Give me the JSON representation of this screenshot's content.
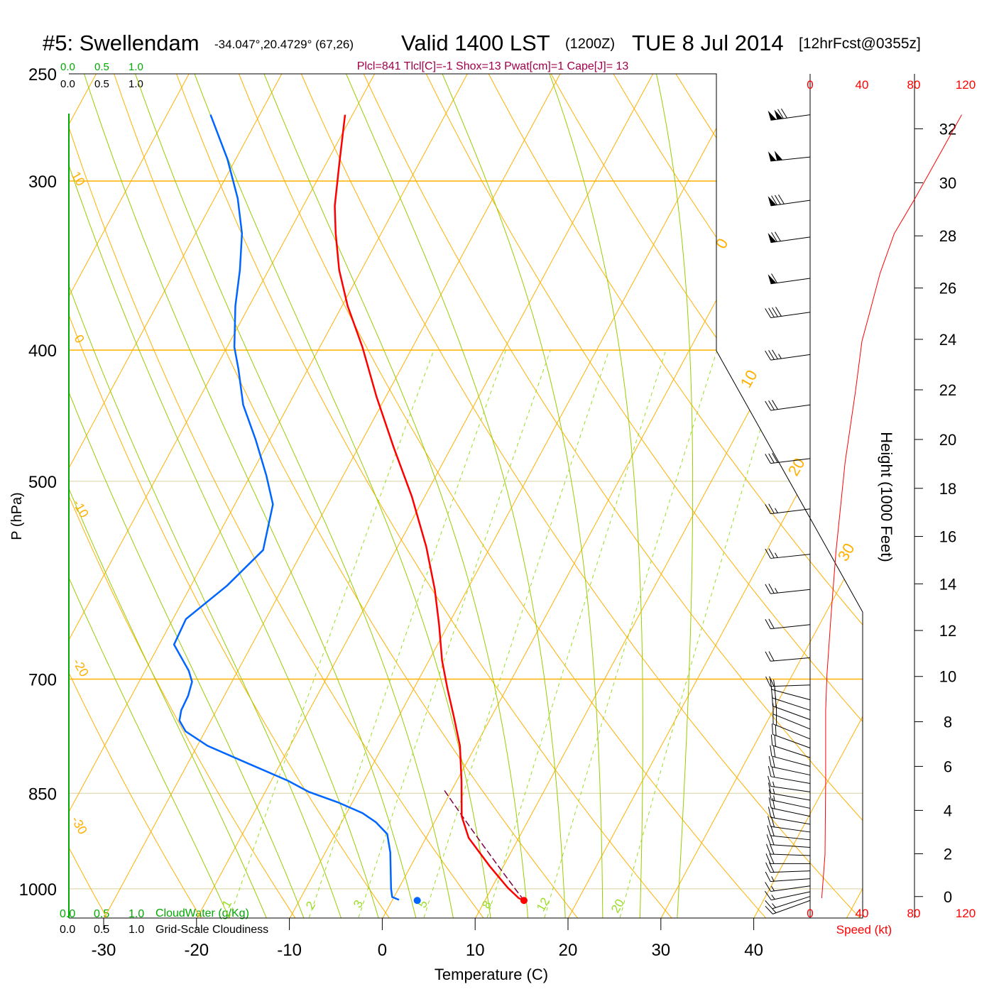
{
  "header": {
    "station": "#5: Swellendam",
    "coords": "-34.047°,20.4729° (67,26)",
    "valid": "Valid 1400 LST",
    "zulu": "(1200Z)",
    "date": "TUE 8 Jul 2014",
    "forecast": "[12hrFcst@0355z]",
    "indices": "Plcl=841 Tlcl[C]=-1 Shox=13 Pwat[cm]=1 Cape[J]= 13"
  },
  "cloud_scales": {
    "ticks": [
      "0.0",
      "0.5",
      "1.0"
    ],
    "cloudwater_label": "CloudWater (g/Kg)",
    "cloudiness_label": "Grid-Scale Cloudiness"
  },
  "colors": {
    "temperature": "#ff0000",
    "dewpoint": "#0066ff",
    "parcel": "#800040",
    "isotherm": "#ffb000",
    "moist_adiabat": "#99cc00",
    "mixing_ratio": "#99dd22",
    "indices": "#a0004a",
    "cloudwater": "#00aa00"
  },
  "chart_data": {
    "type": "line",
    "subtype": "skew-T log-P sounding",
    "xlabel": "Temperature (C)",
    "ylabel": "P (hPa)",
    "x_ticks": [
      "-30",
      "-20",
      "-10",
      "0",
      "10",
      "20",
      "30",
      "40"
    ],
    "y_ticks": [
      "250",
      "300",
      "400",
      "500",
      "700",
      "850",
      "1000"
    ],
    "isotherm_labels_left": [
      "10",
      "0",
      "-10",
      "-20",
      "-30"
    ],
    "isotherm_labels_right": [
      "0",
      "10",
      "20",
      "30"
    ],
    "mixing_ratio_labels": [
      "1",
      "2",
      "3",
      "5",
      "8",
      "12",
      "20"
    ],
    "mixing_ratios_gkg": [
      1,
      2,
      3,
      5,
      8,
      12,
      20
    ],
    "moist_adiabats_c": [
      -16,
      -12,
      -8,
      -4,
      0,
      4,
      8,
      12,
      16,
      20,
      24,
      28,
      32
    ],
    "series": [
      {
        "name": "Temperature",
        "points": [
          [
            268,
            -50.8
          ],
          [
            291,
            -48.6
          ],
          [
            313,
            -46.6
          ],
          [
            328,
            -44.9
          ],
          [
            349,
            -42.4
          ],
          [
            371,
            -39.4
          ],
          [
            398,
            -35.4
          ],
          [
            433,
            -31.0
          ],
          [
            472,
            -26.2
          ],
          [
            513,
            -21.4
          ],
          [
            559,
            -16.9
          ],
          [
            601,
            -13.5
          ],
          [
            638,
            -11.0
          ],
          [
            678,
            -8.6
          ],
          [
            711,
            -6.4
          ],
          [
            747,
            -4.0
          ],
          [
            784,
            -1.7
          ],
          [
            832,
            0.5
          ],
          [
            884,
            2.6
          ],
          [
            917,
            4.6
          ],
          [
            962,
            8.5
          ],
          [
            998,
            11.7
          ],
          [
            1016,
            13.5
          ],
          [
            1020,
            14.2
          ]
        ]
      },
      {
        "name": "Dewpoint",
        "points": [
          [
            268,
            -65.3
          ],
          [
            289,
            -60.9
          ],
          [
            309,
            -57.5
          ],
          [
            328,
            -55.0
          ],
          [
            349,
            -53.1
          ],
          [
            371,
            -51.5
          ],
          [
            398,
            -49.2
          ],
          [
            413,
            -47.5
          ],
          [
            439,
            -44.9
          ],
          [
            466,
            -41.5
          ],
          [
            495,
            -38.3
          ],
          [
            520,
            -35.9
          ],
          [
            562,
            -34.3
          ],
          [
            597,
            -36.1
          ],
          [
            632,
            -38.6
          ],
          [
            660,
            -38.4
          ],
          [
            690,
            -35.3
          ],
          [
            703,
            -34.3
          ],
          [
            720,
            -33.9
          ],
          [
            738,
            -33.8
          ],
          [
            751,
            -33.4
          ],
          [
            765,
            -32.1
          ],
          [
            784,
            -28.9
          ],
          [
            808,
            -23.5
          ],
          [
            832,
            -18.2
          ],
          [
            848,
            -15.3
          ],
          [
            863,
            -11.6
          ],
          [
            879,
            -8.3
          ],
          [
            893,
            -6.3
          ],
          [
            911,
            -4.4
          ],
          [
            940,
            -3.0
          ],
          [
            1000,
            -0.8
          ],
          [
            1014,
            -0.2
          ],
          [
            1019,
            0.7
          ]
        ]
      },
      {
        "name": "Parcel",
        "surface": [
          1020,
          14.2
        ],
        "lcl": [
          841,
          -1
        ]
      }
    ],
    "surface": {
      "pressure": 1020,
      "temperature": 14.2,
      "dewpoint": 2.7
    },
    "wind_barbs": [
      [
        268,
        120,
        262
      ],
      [
        288,
        100,
        264
      ],
      [
        310,
        80,
        262
      ],
      [
        330,
        70,
        262
      ],
      [
        354,
        60,
        262
      ],
      [
        375,
        40,
        262
      ],
      [
        403,
        35,
        262
      ],
      [
        439,
        30,
        262
      ],
      [
        481,
        30,
        263
      ],
      [
        524,
        25,
        263
      ],
      [
        566,
        25,
        264
      ],
      [
        601,
        25,
        264
      ],
      [
        638,
        20,
        264
      ],
      [
        675,
        20,
        265
      ],
      [
        707,
        20,
        268
      ],
      [
        725,
        20,
        285
      ],
      [
        738,
        20,
        288
      ],
      [
        750,
        20,
        290
      ],
      [
        762,
        20,
        292
      ],
      [
        775,
        20,
        292
      ],
      [
        787,
        20,
        290
      ],
      [
        800,
        20,
        288
      ],
      [
        812,
        20,
        285
      ],
      [
        824,
        20,
        282
      ],
      [
        836,
        20,
        280
      ],
      [
        848,
        15,
        278
      ],
      [
        860,
        15,
        280
      ],
      [
        872,
        15,
        282
      ],
      [
        884,
        20,
        282
      ],
      [
        896,
        20,
        280
      ],
      [
        908,
        20,
        278
      ],
      [
        920,
        20,
        276
      ],
      [
        932,
        20,
        274
      ],
      [
        945,
        20,
        272
      ],
      [
        958,
        20,
        270
      ],
      [
        970,
        20,
        268
      ],
      [
        983,
        15,
        266
      ],
      [
        995,
        15,
        262
      ],
      [
        1005,
        15,
        258
      ],
      [
        1013,
        15,
        252
      ],
      [
        1020,
        15,
        250
      ]
    ],
    "speed_profile": {
      "xlabel": "Speed (kt)",
      "x_ticks": [
        "0",
        "40",
        "80",
        "120"
      ],
      "points": [
        [
          1016,
          9
        ],
        [
          943,
          11.5
        ],
        [
          832,
          12
        ],
        [
          738,
          12
        ],
        [
          695,
          13
        ],
        [
          631,
          16
        ],
        [
          563,
          20
        ],
        [
          484,
          27
        ],
        [
          429,
          35
        ],
        [
          394,
          40
        ],
        [
          375,
          46
        ],
        [
          351,
          54
        ],
        [
          328,
          65
        ],
        [
          309,
          81
        ],
        [
          289,
          98
        ],
        [
          268,
          117
        ]
      ]
    },
    "height_axis": {
      "label": "Height (1000 Feet)",
      "ticks": [
        "0",
        "2",
        "4",
        "6",
        "8",
        "10",
        "12",
        "14",
        "16",
        "18",
        "20",
        "22",
        "24",
        "26",
        "28",
        "30",
        "32"
      ]
    }
  }
}
